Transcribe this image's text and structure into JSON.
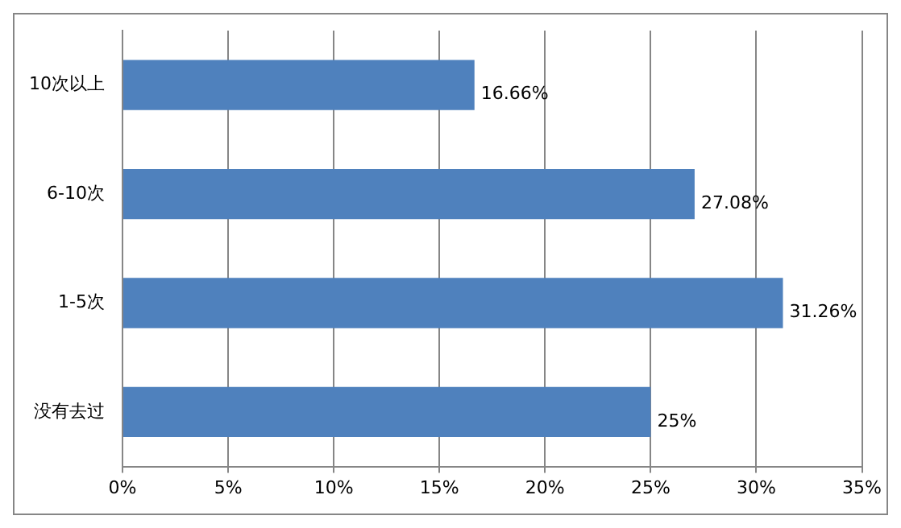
{
  "chart_data": {
    "type": "bar",
    "orientation": "horizontal",
    "categories": [
      "10次以上",
      "6-10次",
      "1-5次",
      "没有去过"
    ],
    "values": [
      16.66,
      27.08,
      31.26,
      25
    ],
    "color": "#4f81bd",
    "value_labels": [
      "16.66%",
      "27.08%",
      "31.26%",
      "25%"
    ],
    "xlim": [
      0,
      35
    ],
    "xticks": [
      {
        "value": 0,
        "label": "0%"
      },
      {
        "value": 5,
        "label": "5%"
      },
      {
        "value": 10,
        "label": "10%"
      },
      {
        "value": 15,
        "label": "15%"
      },
      {
        "value": 20,
        "label": "20%"
      },
      {
        "value": 25,
        "label": "25%"
      },
      {
        "value": 30,
        "label": "30%"
      },
      {
        "value": 35,
        "label": "35%"
      }
    ],
    "grid": "x",
    "legend": false
  }
}
